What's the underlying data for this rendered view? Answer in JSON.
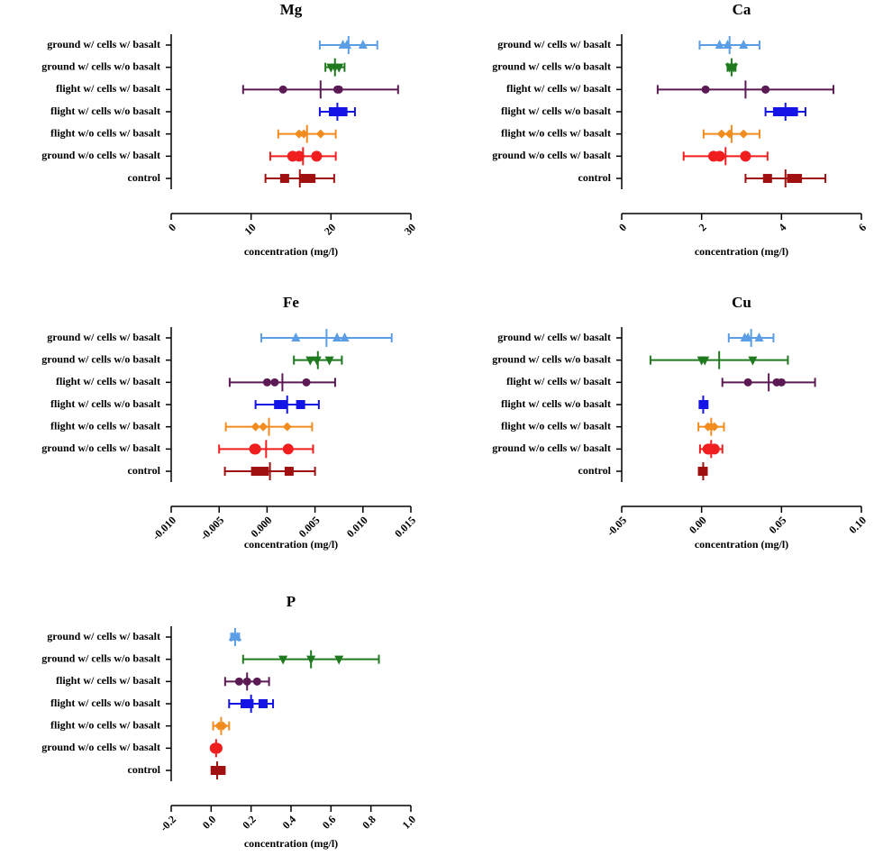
{
  "chart_data": [
    {
      "type": "dot",
      "title": "Mg",
      "xlabel": "concentration (mg/l)",
      "categories": [
        "ground w/ cells w/ basalt",
        "ground w/ cells w/o basalt",
        "flight w/ cells w/ basalt",
        "flight w/ cells w/o basalt",
        "flight w/o cells w/ basalt",
        "ground w/o cells w/ basalt",
        "control"
      ],
      "colors": [
        "#5b9ee6",
        "#1f7a1f",
        "#5c1a55",
        "#1414e6",
        "#f28c1e",
        "#f01e1e",
        "#a01010"
      ],
      "markers": [
        "triangle",
        "triangle-down",
        "circle",
        "square",
        "diamond",
        "circle-large",
        "square"
      ],
      "points": [
        [
          21.5,
          22,
          24
        ],
        [
          20,
          20.5,
          21
        ],
        [
          14,
          20.8,
          21
        ],
        [
          20.3,
          20.7,
          21.5
        ],
        [
          16,
          16.6,
          18.7
        ],
        [
          15.2,
          16,
          18.2
        ],
        [
          14.2,
          16.7,
          17.5
        ]
      ],
      "means": [
        22.2,
        20.5,
        18.7,
        20.8,
        17,
        16.5,
        16.1
      ],
      "errors": [
        3.6,
        1.2,
        9.7,
        2.2,
        3.6,
        4.1,
        4.3
      ],
      "xlim": [
        0,
        30
      ],
      "xticks": [
        0,
        10,
        20,
        30
      ]
    },
    {
      "type": "dot",
      "title": "Ca",
      "xlabel": "concentration (mg/l)",
      "categories": [
        "ground w/ cells w/ basalt",
        "ground w/ cells w/o basalt",
        "flight w/ cells w/ basalt",
        "flight w/ cells w/o basalt",
        "flight w/o cells w/ basalt",
        "ground w/o cells w/ basalt",
        "control"
      ],
      "colors": [
        "#5b9ee6",
        "#1f7a1f",
        "#5c1a55",
        "#1414e6",
        "#f28c1e",
        "#f01e1e",
        "#a01010"
      ],
      "markers": [
        "triangle",
        "triangle-down",
        "circle",
        "square",
        "diamond",
        "circle-large",
        "square"
      ],
      "points": [
        [
          2.45,
          2.65,
          3.05
        ],
        [
          2.7,
          2.75,
          2.8
        ],
        [
          2.1,
          3.6,
          3.6
        ],
        [
          3.9,
          4.1,
          4.3
        ],
        [
          2.5,
          2.7,
          3.05
        ],
        [
          2.3,
          2.45,
          3.1
        ],
        [
          3.65,
          4.25,
          4.4
        ]
      ],
      "means": [
        2.7,
        2.75,
        3.1,
        4.1,
        2.75,
        2.6,
        4.1
      ],
      "errors": [
        0.75,
        0.1,
        2.2,
        0.5,
        0.7,
        1.05,
        1.0
      ],
      "xlim": [
        0,
        6
      ],
      "xticks": [
        0,
        2,
        4,
        6
      ]
    },
    {
      "type": "dot",
      "title": "Fe",
      "xlabel": "concentration (mg/l)",
      "categories": [
        "ground w/ cells w/ basalt",
        "ground w/ cells w/o basalt",
        "flight w/ cells w/ basalt",
        "flight w/ cells w/o basalt",
        "flight w/o cells w/ basalt",
        "ground w/o cells w/ basalt",
        "control"
      ],
      "colors": [
        "#5b9ee6",
        "#1f7a1f",
        "#5c1a55",
        "#1414e6",
        "#f28c1e",
        "#f01e1e",
        "#a01010"
      ],
      "markers": [
        "triangle",
        "triangle-down",
        "circle",
        "square",
        "diamond",
        "circle-large",
        "square"
      ],
      "points": [
        [
          0.003,
          0.0073,
          0.0081
        ],
        [
          0.0045,
          0.0052,
          0.0065
        ],
        [
          0.0,
          0.0008,
          0.0041
        ],
        [
          0.0012,
          0.0017,
          0.0035
        ],
        [
          -0.0012,
          -0.0004,
          0.0021
        ],
        [
          -0.0013,
          -0.0012,
          0.0022
        ],
        [
          -0.0012,
          -0.0003,
          0.0023
        ]
      ],
      "means": [
        0.0062,
        0.0053,
        0.0016,
        0.0021,
        0.0002,
        -0.0001,
        0.0003
      ],
      "errors": [
        0.0068,
        0.0025,
        0.0055,
        0.0033,
        0.0045,
        0.0049,
        0.0047
      ],
      "xlim": [
        -0.01,
        0.015
      ],
      "xticks": [
        {
          "value": -0.01,
          "label": "-0.010"
        },
        -0.005,
        {
          "value": 0,
          "label": "0.000"
        },
        0.005,
        {
          "value": 0.01,
          "label": "0.010"
        },
        0.015
      ]
    },
    {
      "type": "dot",
      "title": "Cu",
      "xlabel": "concentration (mg/l)",
      "categories": [
        "ground w/ cells w/ basalt",
        "ground w/ cells w/o basalt",
        "flight w/ cells w/ basalt",
        "flight w/ cells w/o basalt",
        "flight w/o cells w/ basalt",
        "ground w/o cells w/ basalt",
        "control"
      ],
      "colors": [
        "#5b9ee6",
        "#1f7a1f",
        "#5c1a55",
        "#1414e6",
        "#f28c1e",
        "#f01e1e",
        "#a01010"
      ],
      "markers": [
        "triangle",
        "triangle-down",
        "circle",
        "square",
        "diamond",
        "circle-large",
        "square"
      ],
      "points": [
        [
          0.027,
          0.029,
          0.036
        ],
        [
          0.0,
          0.002,
          0.032
        ],
        [
          0.029,
          0.047,
          0.05
        ],
        [
          0.001,
          0.001,
          0.0015
        ],
        [
          0.004,
          0.006,
          0.008
        ],
        [
          0.004,
          0.005,
          0.008
        ],
        [
          0.0005,
          0.001,
          0.001
        ]
      ],
      "means": [
        0.031,
        0.011,
        0.042,
        0.001,
        0.006,
        0.006,
        0.001
      ],
      "errors": [
        0.014,
        0.043,
        0.029,
        0.001,
        0.008,
        0.007,
        0.0005
      ],
      "xlim": [
        -0.05,
        0.1
      ],
      "xticks": [
        -0.05,
        {
          "value": 0,
          "label": "0.00"
        },
        0.05,
        {
          "value": 0.1,
          "label": "0.10"
        }
      ]
    },
    {
      "type": "dot",
      "title": "P",
      "xlabel": "concentration (mg/l)",
      "categories": [
        "ground w/ cells w/ basalt",
        "ground w/ cells w/o basalt",
        "flight w/ cells w/ basalt",
        "flight w/ cells w/o basalt",
        "flight w/o cells w/ basalt",
        "ground w/o cells w/ basalt",
        "control"
      ],
      "colors": [
        "#5b9ee6",
        "#1f7a1f",
        "#5c1a55",
        "#1414e6",
        "#f28c1e",
        "#f01e1e",
        "#a01010"
      ],
      "markers": [
        "triangle",
        "triangle-down",
        "circle",
        "square",
        "diamond",
        "circle-large",
        "square"
      ],
      "points": [
        [
          0.11,
          0.12,
          0.13
        ],
        [
          0.36,
          0.5,
          0.64
        ],
        [
          0.14,
          0.18,
          0.23
        ],
        [
          0.17,
          0.19,
          0.26
        ],
        [
          0.04,
          0.05,
          0.06
        ],
        [
          0.02,
          0.025,
          0.03
        ],
        [
          0.02,
          0.03,
          0.05
        ]
      ],
      "means": [
        0.12,
        0.5,
        0.18,
        0.2,
        0.05,
        0.025,
        0.03
      ],
      "errors": [
        0.02,
        0.34,
        0.11,
        0.11,
        0.04,
        0.01,
        0.015
      ],
      "xlim": [
        -0.2,
        1.0
      ],
      "xticks": [
        -0.2,
        {
          "value": 0,
          "label": "0.0"
        },
        0.2,
        0.4,
        0.6,
        0.8,
        {
          "value": 1,
          "label": "1.0"
        }
      ]
    }
  ]
}
